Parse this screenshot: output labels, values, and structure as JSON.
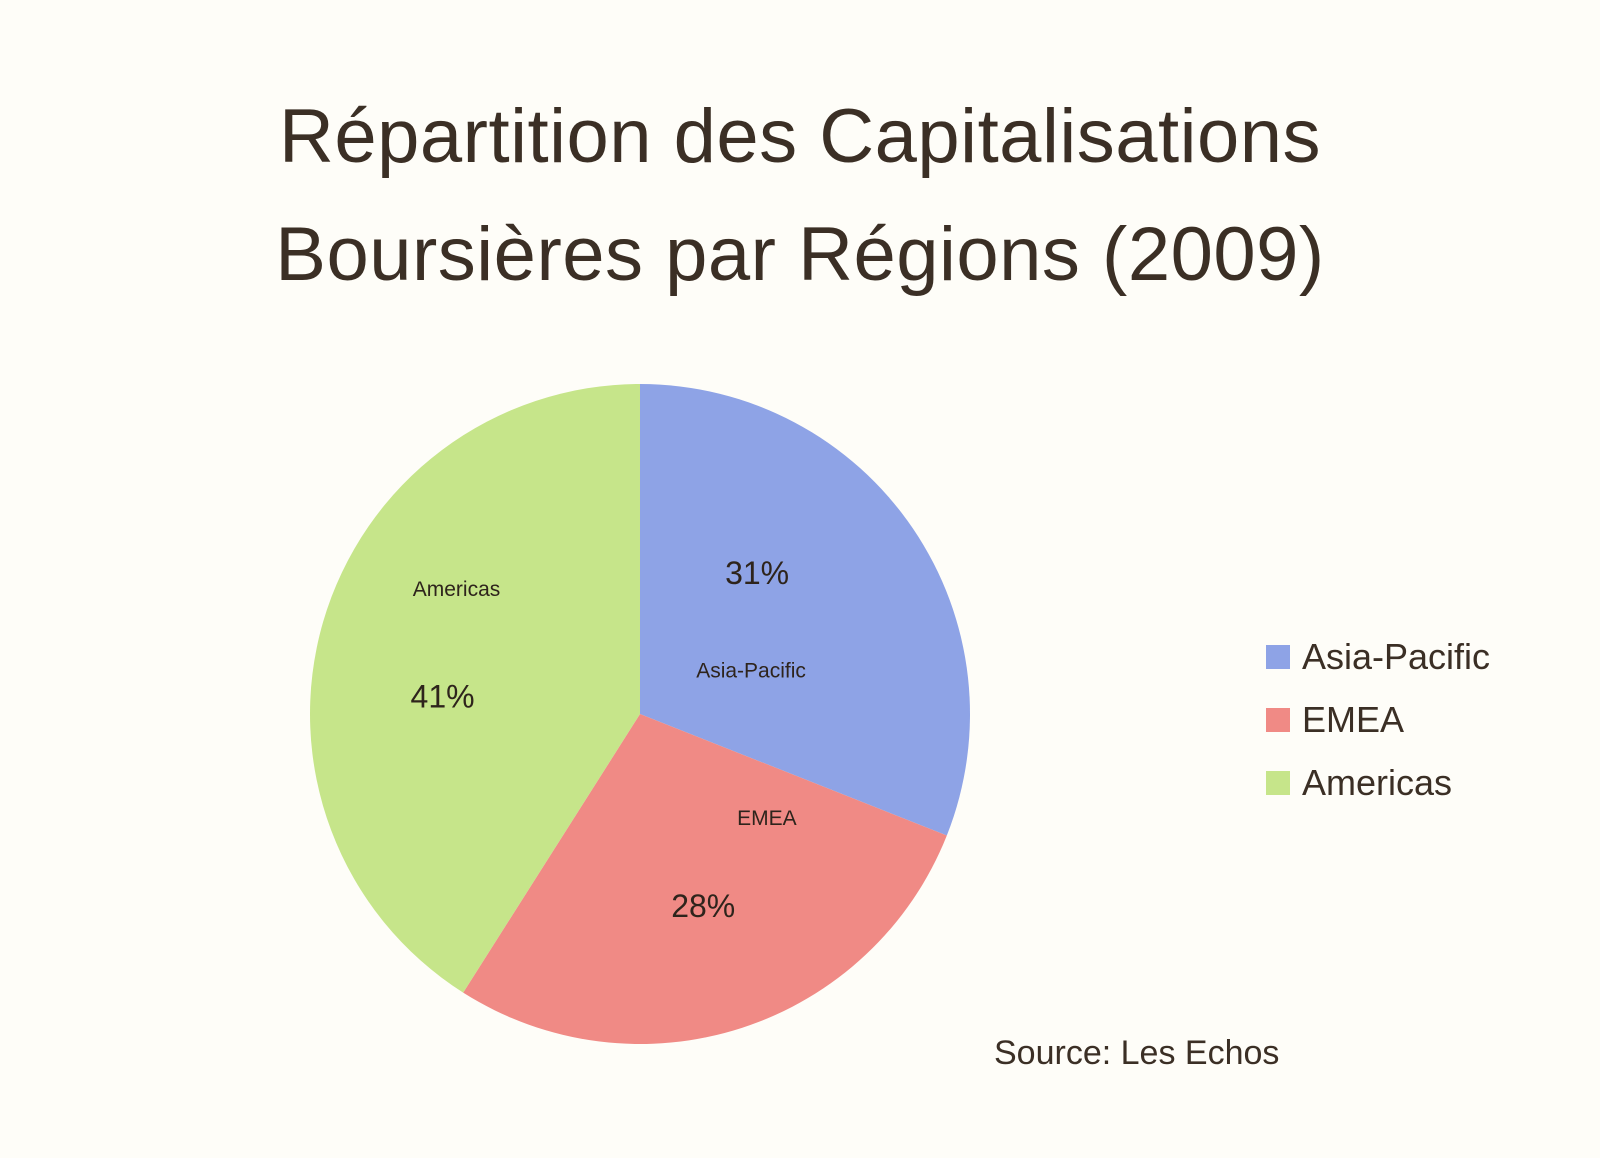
{
  "title": {
    "line1": "Répartition des Capitalisations",
    "line2": "Boursières par Régions (2009)"
  },
  "source": "Source: Les Echos",
  "legend": [
    {
      "label": "Asia-Pacific",
      "color": "#8ea3e6"
    },
    {
      "label": "EMEA",
      "color": "#f08a85"
    },
    {
      "label": "Americas",
      "color": "#c6e58a"
    }
  ],
  "chart_data": {
    "type": "pie",
    "title": "Répartition des Capitalisations Boursières par Régions (2009)",
    "categories": [
      "Asia-Pacific",
      "EMEA",
      "Americas"
    ],
    "values": [
      31,
      28,
      41
    ],
    "unit": "%",
    "colors": [
      "#8ea3e6",
      "#f08a85",
      "#c6e58a"
    ],
    "data_labels": [
      "31%",
      "28%",
      "41%"
    ],
    "slice_labels": [
      "Asia-Pacific",
      "EMEA",
      "Americas"
    ],
    "legend_position": "right",
    "annotation": "Source: Les Echos"
  }
}
